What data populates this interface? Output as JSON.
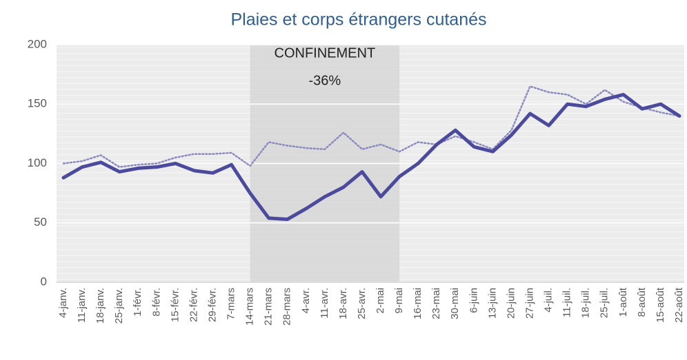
{
  "chart_data": {
    "type": "line",
    "title": "Plaies et corps étrangers cutanés",
    "categories": [
      "4-janv.",
      "11-janv.",
      "18-janv.",
      "25-janv.",
      "1-févr.",
      "8-févr.",
      "15-févr.",
      "22-févr.",
      "29-févr.",
      "7-mars",
      "14-mars",
      "21-mars",
      "28-mars",
      "4-avr.",
      "11-avr.",
      "18-avr.",
      "25-avr.",
      "2-mai",
      "9-mai",
      "16-mai",
      "23-mai",
      "30-mai",
      "6-juin",
      "13-juin",
      "20-juin",
      "27-juin",
      "4-juil.",
      "11-juil.",
      "18-juil.",
      "25-juil.",
      "1-août",
      "8-août",
      "15-août",
      "22-août"
    ],
    "series": [
      {
        "color": "#8a89c0",
        "dashed": true,
        "values": [
          100,
          102,
          107,
          97,
          99,
          100,
          105,
          108,
          108,
          109,
          98,
          118,
          115,
          113,
          112,
          126,
          112,
          116,
          110,
          118,
          116,
          123,
          118,
          112,
          128,
          165,
          160,
          158,
          150,
          162,
          152,
          147,
          143,
          140
        ]
      },
      {
        "color": "#4b4a9c",
        "dashed": false,
        "values": [
          88,
          97,
          101,
          93,
          96,
          97,
          100,
          94,
          92,
          99,
          75,
          54,
          53,
          62,
          72,
          80,
          93,
          72,
          89,
          100,
          116,
          128,
          114,
          110,
          124,
          142,
          132,
          150,
          148,
          154,
          158,
          146,
          150,
          140
        ]
      }
    ],
    "shade": {
      "from": "14-mars",
      "to": "9-mai",
      "color": "#d4d4d4"
    },
    "annotations": [
      "CONFINEMENT",
      "-36%"
    ],
    "ylim": [
      0,
      200
    ],
    "yticks": [
      0,
      50,
      100,
      150,
      200
    ],
    "grid": true
  }
}
